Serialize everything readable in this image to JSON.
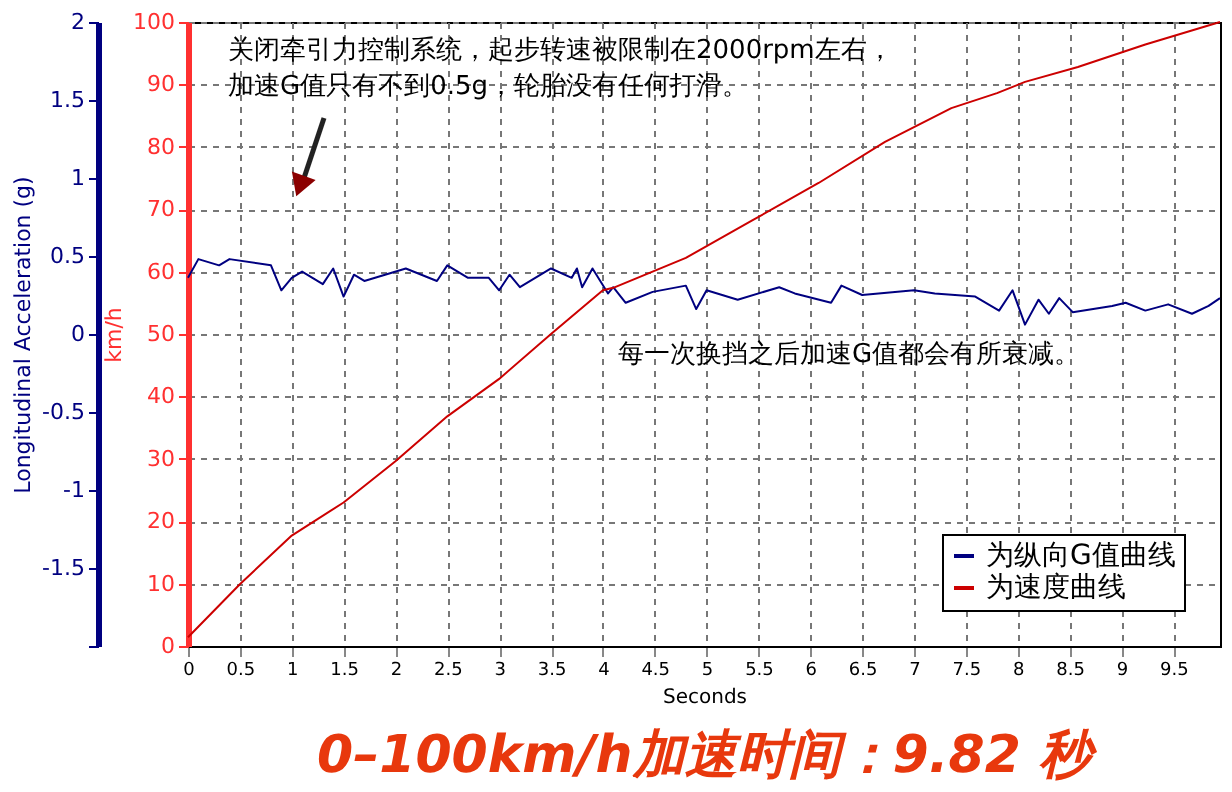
{
  "chart_data": {
    "type": "line",
    "title": "0–100km/h加速时间：9.82 秒",
    "xlabel": "Seconds",
    "ylabel": "km/h",
    "y2label": "Longitudinal Acceleration (g)",
    "xlim": [
      0,
      9.95
    ],
    "xticks": [
      0,
      0.5,
      1,
      1.5,
      2,
      2.5,
      3,
      3.5,
      4,
      4.5,
      5,
      5.5,
      6,
      6.5,
      7,
      7.5,
      8,
      8.5,
      9,
      9.5
    ],
    "ylim": [
      0,
      100
    ],
    "yticks": [
      0,
      10,
      20,
      30,
      40,
      50,
      60,
      70,
      80,
      90,
      100
    ],
    "y2lim": [
      -2,
      2
    ],
    "y2ticks": [
      {
        "value": -2,
        "label": null
      },
      -1.5,
      -1,
      -0.5,
      0,
      0.5,
      1,
      1.5,
      2
    ],
    "grid": true,
    "legend": "bottom right",
    "line_style": "solid",
    "marker": "none",
    "series": [
      {
        "name": "为纵向G值曲线",
        "color": "#000080",
        "axis": "y2",
        "x": [
          0,
          0.1,
          0.3,
          0.4,
          0.8,
          0.9,
          1.0,
          1.1,
          1.3,
          1.4,
          1.5,
          1.6,
          1.7,
          2.1,
          2.4,
          2.5,
          2.7,
          2.9,
          3.0,
          3.1,
          3.2,
          3.5,
          3.7,
          3.75,
          3.8,
          3.9,
          4.05,
          4.1,
          4.22,
          4.48,
          4.8,
          4.9,
          5.0,
          5.3,
          5.7,
          5.85,
          6.2,
          6.3,
          6.5,
          7.0,
          7.2,
          7.59,
          7.82,
          7.95,
          8.07,
          8.2,
          8.3,
          8.4,
          8.53,
          8.91,
          9.04,
          9.23,
          9.45,
          9.68,
          9.84,
          9.95
        ],
        "values": [
          0.36,
          0.48,
          0.44,
          0.48,
          0.44,
          0.28,
          0.36,
          0.4,
          0.32,
          0.42,
          0.24,
          0.38,
          0.34,
          0.42,
          0.34,
          0.44,
          0.36,
          0.36,
          0.28,
          0.38,
          0.3,
          0.42,
          0.36,
          0.42,
          0.3,
          0.42,
          0.26,
          0.3,
          0.2,
          0.27,
          0.31,
          0.16,
          0.28,
          0.22,
          0.3,
          0.26,
          0.2,
          0.31,
          0.25,
          0.28,
          0.26,
          0.24,
          0.15,
          0.28,
          0.06,
          0.22,
          0.13,
          0.23,
          0.14,
          0.18,
          0.2,
          0.15,
          0.19,
          0.13,
          0.18,
          0.23
        ]
      },
      {
        "name": "为速度曲线",
        "color": "#cc0000",
        "x": [
          0,
          0.5,
          1.0,
          1.5,
          2.0,
          2.5,
          3.0,
          3.5,
          4.0,
          4.1,
          4.8,
          5.44,
          6.08,
          6.72,
          7.36,
          7.8,
          8.07,
          8.58,
          9.23,
          9.95
        ],
        "values": [
          1.4,
          9.9,
          17.7,
          23,
          29.6,
          36.8,
          42.8,
          50,
          57,
          57.4,
          62.2,
          68.2,
          74.2,
          80.8,
          86.2,
          88.6,
          90.4,
          92.8,
          96.4,
          100
        ]
      }
    ],
    "annotations": [
      "关闭牵引力控制系统，起步转速被限制在2000rpm左右，加速G值只有不到0.5g，轮胎没有任何打滑。",
      "每一次换挡之后加速G值都会有所衰减。"
    ]
  }
}
